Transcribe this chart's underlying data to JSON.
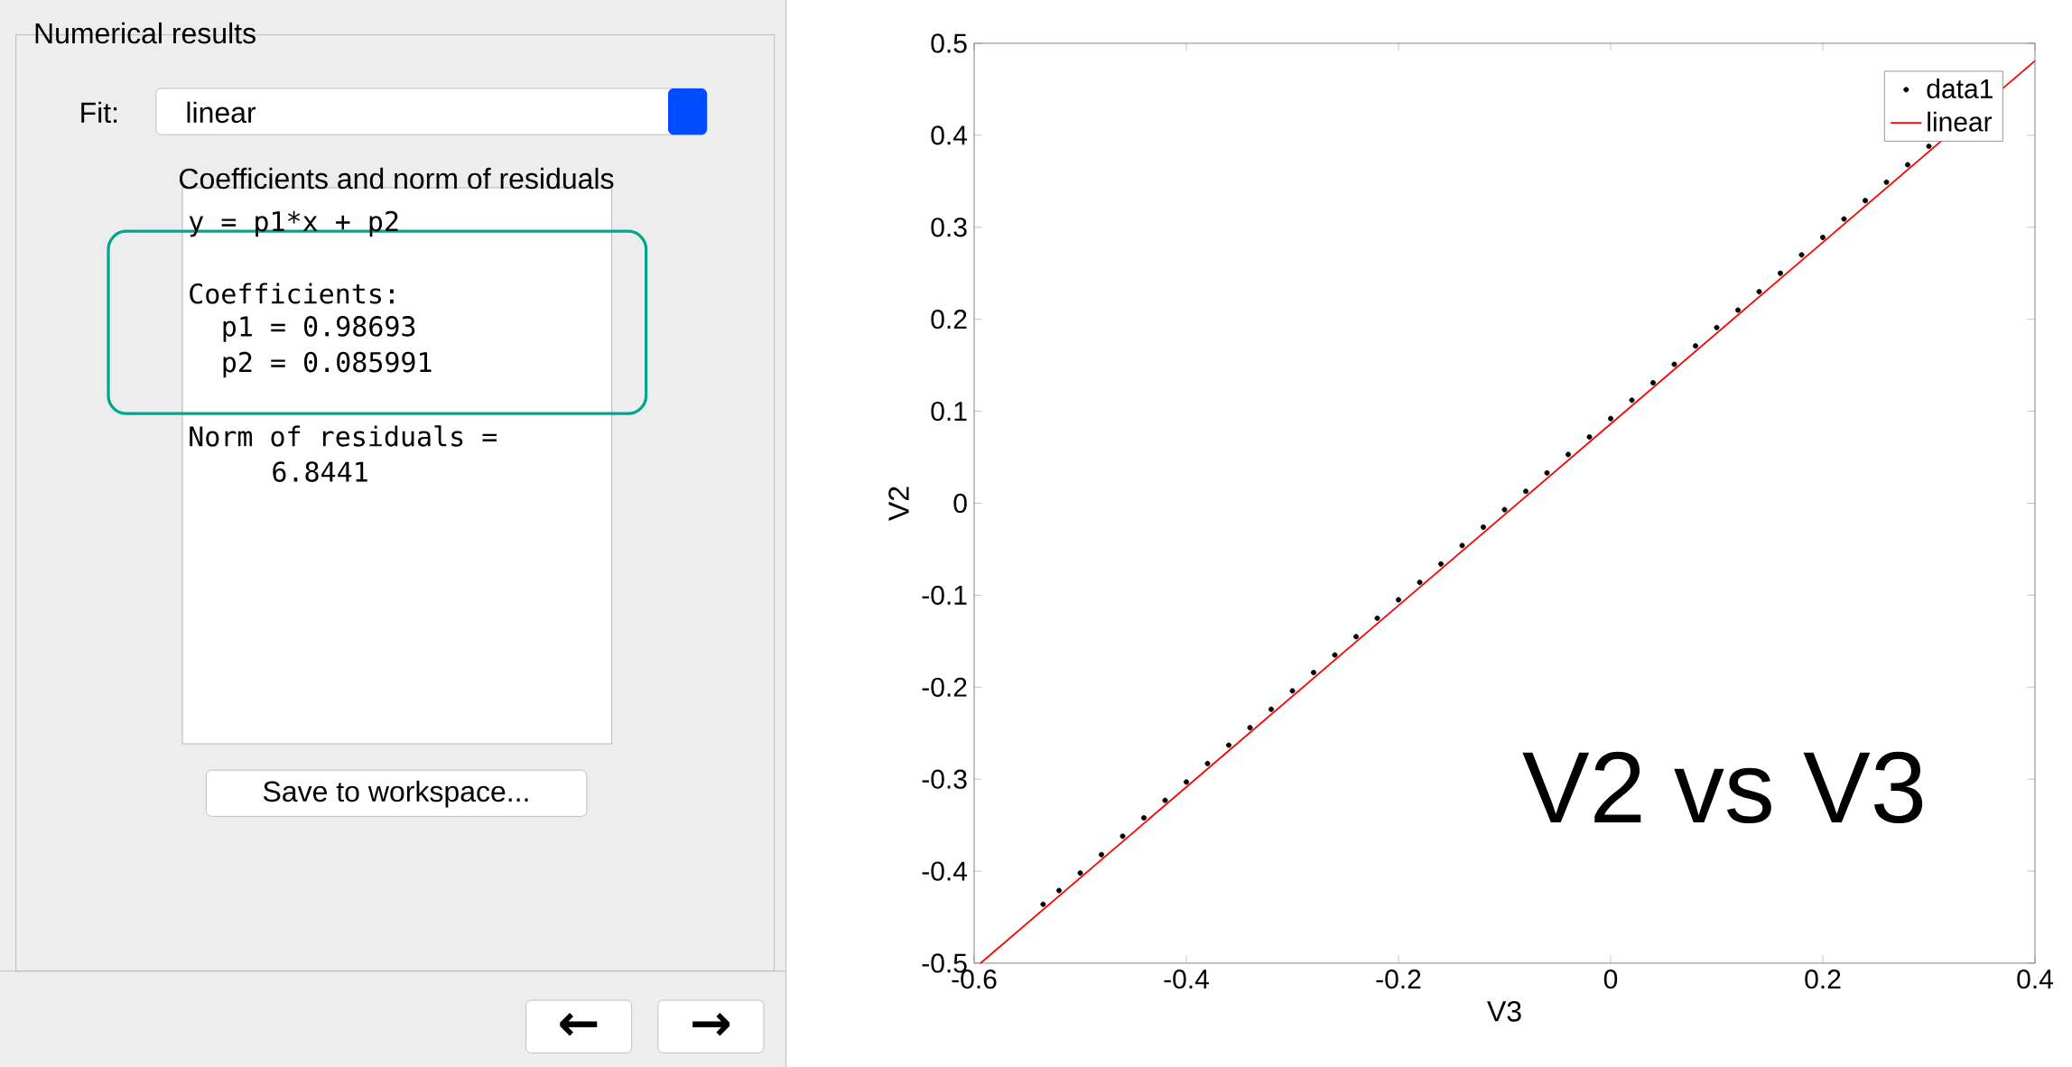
{
  "chart_data": {
    "type": "scatter",
    "xlabel": "V3",
    "ylabel": "V2",
    "xlim": [
      -0.6,
      0.4
    ],
    "ylim": [
      -0.5,
      0.5
    ],
    "xticks": [
      -0.6,
      -0.4,
      -0.2,
      0,
      0.2,
      0.4
    ],
    "yticks": [
      -0.5,
      -0.4,
      -0.3,
      -0.2,
      -0.1,
      0,
      0.1,
      0.2,
      0.3,
      0.4,
      0.5
    ],
    "grid": false,
    "legend": "top right",
    "series": [
      {
        "name": "data1",
        "marker": "circle",
        "color": "#000000",
        "x": [
          -0.535,
          -0.52,
          -0.5,
          -0.48,
          -0.46,
          -0.44,
          -0.42,
          -0.4,
          -0.38,
          -0.36,
          -0.34,
          -0.32,
          -0.3,
          -0.28,
          -0.26,
          -0.24,
          -0.22,
          -0.2,
          -0.18,
          -0.16,
          -0.14,
          -0.12,
          -0.1,
          -0.08,
          -0.06,
          -0.04,
          -0.02,
          0,
          0.02,
          0.04,
          0.06,
          0.08,
          0.1,
          0.12,
          0.14,
          0.16,
          0.18,
          0.2,
          0.22,
          0.24,
          0.26,
          0.28,
          0.3
        ],
        "values": [
          -0.436,
          -0.421,
          -0.402,
          -0.382,
          -0.362,
          -0.342,
          -0.323,
          -0.303,
          -0.283,
          -0.263,
          -0.244,
          -0.224,
          -0.204,
          -0.184,
          -0.165,
          -0.145,
          -0.125,
          -0.105,
          -0.086,
          -0.066,
          -0.046,
          -0.026,
          -0.007,
          0.013,
          0.033,
          0.053,
          0.072,
          0.092,
          0.112,
          0.131,
          0.151,
          0.171,
          0.191,
          0.21,
          0.23,
          0.25,
          0.27,
          0.289,
          0.309,
          0.329,
          0.349,
          0.368,
          0.388
        ]
      },
      {
        "name": "linear",
        "type": "line",
        "color": "#ff0000",
        "x": [
          -0.594,
          0.4
        ],
        "values": [
          -0.5,
          0.481
        ]
      }
    ],
    "annotations": [
      "Numerical results",
      "Fit:",
      "linear",
      "Coefficients and norm of residuals",
      "y = p1*x + p2",
      "Coefficients:",
      "p1 = 0.98693",
      "p2 = 0.085991",
      "Norm of residuals =",
      "6.8441",
      "Save to workspace...",
      "←",
      "→",
      "V2 vs V3"
    ]
  }
}
